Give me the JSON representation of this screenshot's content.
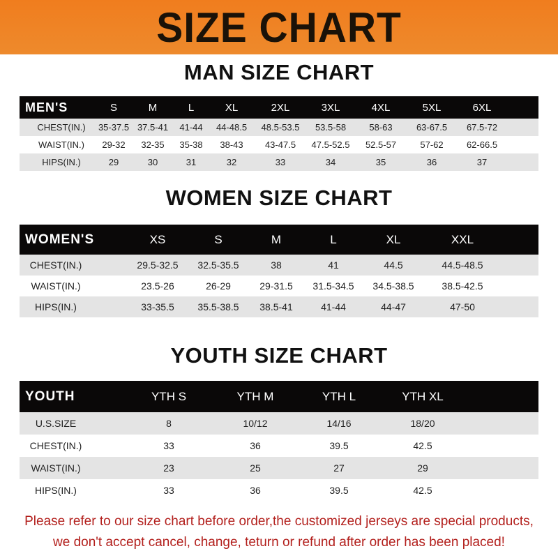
{
  "banner": {
    "title": "SIZE CHART",
    "color": "#f07d1e"
  },
  "men": {
    "title": "MAN SIZE CHART",
    "header": [
      "MEN'S",
      "S",
      "M",
      "L",
      "XL",
      "2XL",
      "3XL",
      "4XL",
      "5XL",
      "6XL"
    ],
    "rows": [
      [
        "CHEST(IN.)",
        "35-37.5",
        "37.5-41",
        "41-44",
        "44-48.5",
        "48.5-53.5",
        "53.5-58",
        "58-63",
        "63-67.5",
        "67.5-72"
      ],
      [
        "WAIST(IN.)",
        "29-32",
        "32-35",
        "35-38",
        "38-43",
        "43-47.5",
        "47.5-52.5",
        "52.5-57",
        "57-62",
        "62-66.5"
      ],
      [
        "HIPS(IN.)",
        "29",
        "30",
        "31",
        "32",
        "33",
        "34",
        "35",
        "36",
        "37"
      ]
    ]
  },
  "women": {
    "title": "WOMEN SIZE CHART",
    "header": [
      "WOMEN'S",
      "XS",
      "S",
      "M",
      "L",
      "XL",
      "XXL"
    ],
    "rows": [
      [
        "CHEST(IN.)",
        "29.5-32.5",
        "32.5-35.5",
        "38",
        "41",
        "44.5",
        "44.5-48.5"
      ],
      [
        "WAIST(IN.)",
        "23.5-26",
        "26-29",
        "29-31.5",
        "31.5-34.5",
        "34.5-38.5",
        "38.5-42.5"
      ],
      [
        "HIPS(IN.)",
        "33-35.5",
        "35.5-38.5",
        "38.5-41",
        "41-44",
        "44-47",
        "47-50"
      ]
    ]
  },
  "youth": {
    "title": "YOUTH SIZE CHART",
    "header": [
      "YOUTH",
      "YTH S",
      "YTH M",
      "YTH L",
      "YTH XL"
    ],
    "rows": [
      [
        "U.S.SIZE",
        "8",
        "10/12",
        "14/16",
        "18/20"
      ],
      [
        "CHEST(IN.)",
        "33",
        "36",
        "39.5",
        "42.5"
      ],
      [
        "WAIST(IN.)",
        "23",
        "25",
        "27",
        "29"
      ],
      [
        "HIPS(IN.)",
        "33",
        "36",
        "39.5",
        "42.5"
      ]
    ]
  },
  "note": {
    "line1": "Please refer to our size chart before order,the customized jerseys are special products,",
    "line2": "we don't accept cancel, change, teturn or refund after order has been placed!",
    "color": "#b3201d"
  }
}
